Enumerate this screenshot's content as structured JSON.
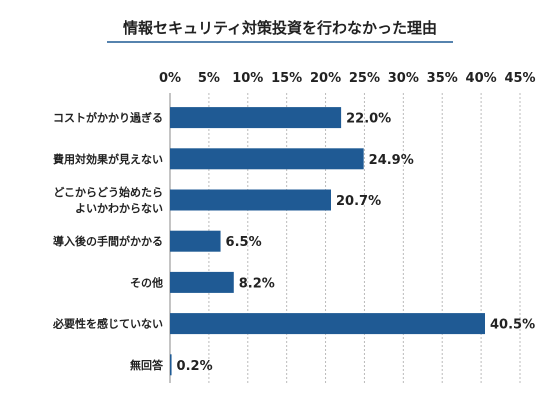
{
  "chart_data": {
    "type": "bar",
    "orientation": "horizontal",
    "title": "情報セキュリティ対策投資を行わなかった理由",
    "categories": [
      [
        "コストがかかり過ぎる"
      ],
      [
        "費用対効果が見えない"
      ],
      [
        "どこからどう始めたら",
        "よいかわからない"
      ],
      [
        "導入後の手間がかかる"
      ],
      [
        "その他"
      ],
      [
        "必要性を感じていない"
      ],
      [
        "無回答"
      ]
    ],
    "values": [
      22.0,
      24.9,
      20.7,
      6.5,
      8.2,
      40.5,
      0.2
    ],
    "value_labels": [
      "22.0%",
      "24.9%",
      "20.7%",
      "6.5%",
      "8.2%",
      "40.5%",
      "0.2%"
    ],
    "xlim": [
      0,
      45
    ],
    "x_ticks": [
      0,
      5,
      10,
      15,
      20,
      25,
      30,
      35,
      40,
      45
    ],
    "x_tick_labels": [
      "0%",
      "5%",
      "10%",
      "15%",
      "20%",
      "25%",
      "30%",
      "35%",
      "40%",
      "45%"
    ],
    "axis_position": "top",
    "grid": true,
    "legend": false,
    "bar_color": "#1f5a94",
    "title_underline_color": "#1f5a94"
  }
}
